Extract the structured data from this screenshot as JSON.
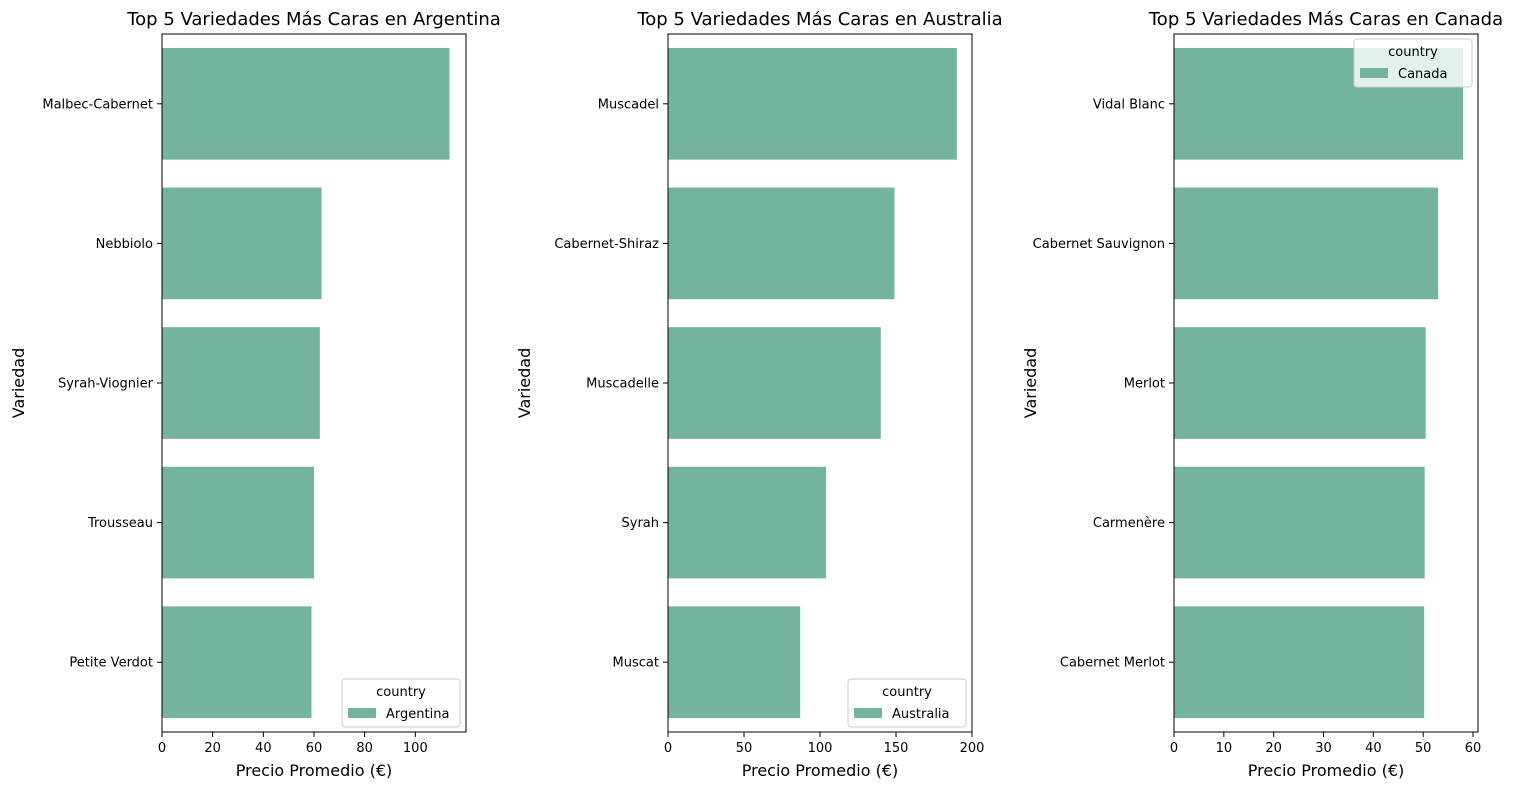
{
  "chart_data": [
    {
      "type": "bar",
      "orientation": "horizontal",
      "title": "Top 5 Variedades Más Caras en Argentina",
      "xlabel": "Precio Promedio (€)",
      "ylabel": "Variedad",
      "xlim": [
        0,
        120
      ],
      "xticks": [
        0,
        20,
        40,
        60,
        80,
        100
      ],
      "categories": [
        "Malbec-Cabernet",
        "Nebbiolo",
        "Syrah-Viognier",
        "Trousseau",
        "Petite Verdot"
      ],
      "series": [
        {
          "name": "Argentina",
          "values": [
            113.5,
            63.0,
            62.3,
            60.0,
            59.0
          ]
        }
      ],
      "legend": {
        "title": "country",
        "position": "lower-right"
      }
    },
    {
      "type": "bar",
      "orientation": "horizontal",
      "title": "Top 5 Variedades Más Caras en Australia",
      "xlabel": "Precio Promedio (€)",
      "ylabel": "Variedad",
      "xlim": [
        0,
        200
      ],
      "xticks": [
        0,
        50,
        100,
        150,
        200
      ],
      "categories": [
        "Muscadel",
        "Cabernet-Shiraz",
        "Muscadelle",
        "Syrah",
        "Muscat"
      ],
      "series": [
        {
          "name": "Australia",
          "values": [
            190.0,
            149.0,
            140.0,
            104.0,
            87.0
          ]
        }
      ],
      "legend": {
        "title": "country",
        "position": "lower-right"
      }
    },
    {
      "type": "bar",
      "orientation": "horizontal",
      "title": "Top 5 Variedades Más Caras en Canada",
      "xlabel": "Precio Promedio (€)",
      "ylabel": "Variedad",
      "xlim": [
        0,
        61
      ],
      "xticks": [
        0,
        10,
        20,
        30,
        40,
        50,
        60
      ],
      "categories": [
        "Vidal Blanc",
        "Cabernet Sauvignon",
        "Merlot",
        "Carmenère",
        "Cabernet Merlot"
      ],
      "series": [
        {
          "name": "Canada",
          "values": [
            58.0,
            53.0,
            50.5,
            50.3,
            50.2
          ]
        }
      ],
      "legend": {
        "title": "country",
        "position": "upper-right"
      }
    }
  ],
  "colors": {
    "bar": "#74b49f",
    "axis": "#000000",
    "legend_border": "#cccccc"
  }
}
